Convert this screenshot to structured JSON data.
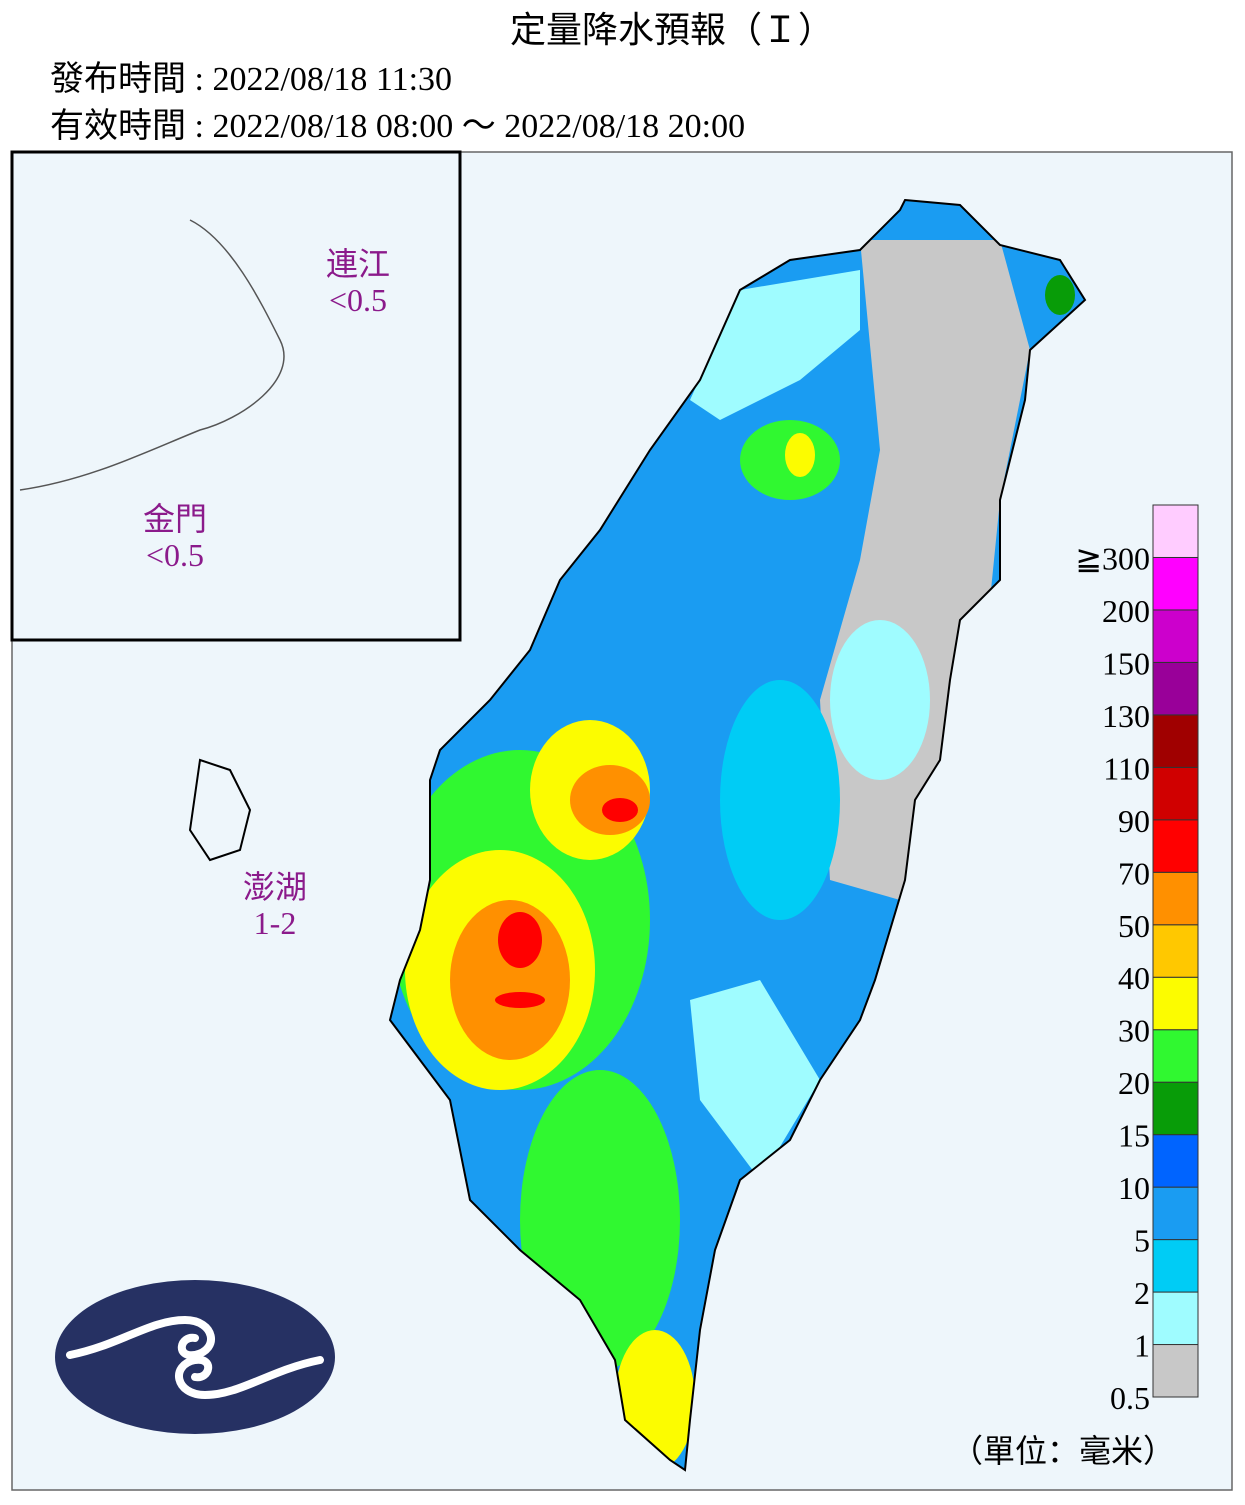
{
  "header": {
    "title": "定量降水預報（Ｉ）",
    "issued": "發布時間 : 2022/08/18 11:30",
    "valid": "有效時間 : 2022/08/18 08:00 ～ 2022/08/18 20:00"
  },
  "regions": [
    {
      "name": "連江",
      "amount": "<0.5"
    },
    {
      "name": "金門",
      "amount": "<0.5"
    },
    {
      "name": "澎湖",
      "amount": "1-2"
    }
  ],
  "legend": {
    "unit": "（單位：毫米）",
    "levels": [
      {
        "label": "0.5",
        "color": "#c8c8c8"
      },
      {
        "label": "1",
        "color": "#9ffcff"
      },
      {
        "label": "2",
        "color": "#00ccf5"
      },
      {
        "label": "5",
        "color": "#1a9cf2"
      },
      {
        "label": "10",
        "color": "#0064ff"
      },
      {
        "label": "15",
        "color": "#089c08"
      },
      {
        "label": "20",
        "color": "#30f830"
      },
      {
        "label": "30",
        "color": "#fcfc00"
      },
      {
        "label": "40",
        "color": "#ffc800"
      },
      {
        "label": "50",
        "color": "#ff9000"
      },
      {
        "label": "70",
        "color": "#ff0000"
      },
      {
        "label": "90",
        "color": "#d00000"
      },
      {
        "label": "110",
        "color": "#a00000"
      },
      {
        "label": "130",
        "color": "#990099"
      },
      {
        "label": "150",
        "color": "#cc00cc"
      },
      {
        "label": "200",
        "color": "#ff00ff"
      },
      {
        "label": "≧300",
        "color": "#ffccff"
      }
    ]
  }
}
